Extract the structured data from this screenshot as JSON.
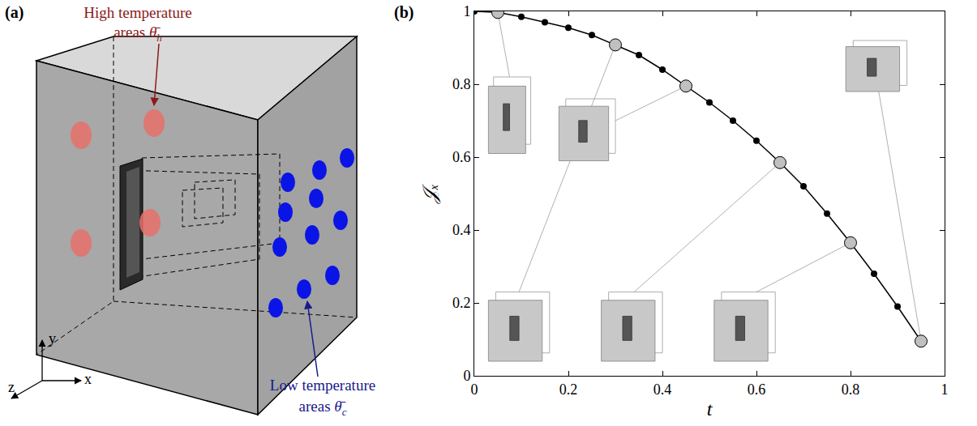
{
  "panel_labels": {
    "a": "(a)",
    "b": "(b)"
  },
  "diagram": {
    "high": {
      "text": "High temperature",
      "text2": "areas",
      "symbol": "θ̄",
      "subscript": "h",
      "color": "#8b1a1a",
      "mark_color": "#e8706a"
    },
    "low": {
      "text": "Low temperature",
      "text2": "areas",
      "symbol": "θ̄",
      "subscript": "c",
      "color": "#1a1a8b",
      "mark_color": "#0a14e6"
    },
    "axes": [
      "x",
      "y",
      "z"
    ]
  },
  "chart_data": {
    "type": "line",
    "x_label": "t",
    "y_label": "𝒥ₓ",
    "xlim": [
      0,
      1
    ],
    "ylim": [
      0,
      1
    ],
    "xticks": [
      0,
      0.2,
      0.4,
      0.6,
      0.8,
      1
    ],
    "yticks": [
      0,
      0.2,
      0.4,
      0.6,
      0.8,
      1
    ],
    "grid": false,
    "series": [
      {
        "type": "line",
        "color": "#000000",
        "marker": "circle",
        "line_style": "solid",
        "x": [
          0,
          0.05,
          0.1,
          0.15,
          0.2,
          0.25,
          0.3,
          0.35,
          0.4,
          0.45,
          0.5,
          0.55,
          0.6,
          0.65,
          0.7,
          0.75,
          0.8,
          0.85,
          0.9,
          0.95
        ],
        "values": [
          1.0,
          0.997,
          0.985,
          0.97,
          0.955,
          0.935,
          0.908,
          0.88,
          0.84,
          0.795,
          0.75,
          0.7,
          0.645,
          0.585,
          0.52,
          0.445,
          0.365,
          0.28,
          0.19,
          0.095
        ]
      },
      {
        "type": "scatter",
        "color": "#c0c0c0",
        "marker": "circle",
        "x": [
          0.05,
          0.3,
          0.45,
          0.65,
          0.8,
          0.95
        ],
        "values": [
          0.997,
          0.908,
          0.795,
          0.585,
          0.365,
          0.095
        ]
      }
    ]
  }
}
